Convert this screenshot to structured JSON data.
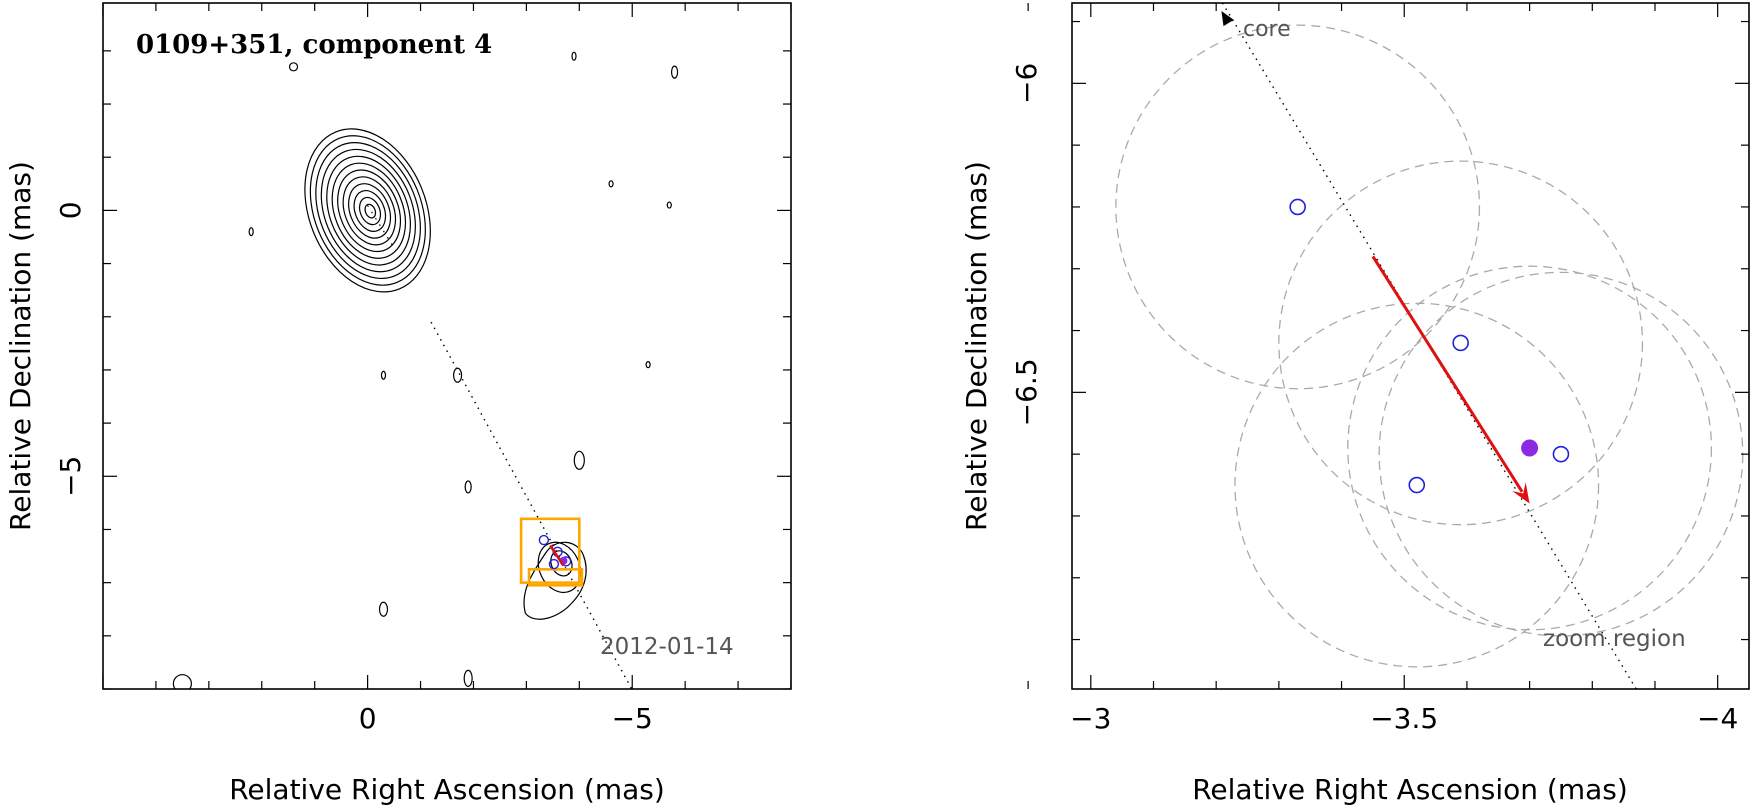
{
  "chart_data": [
    {
      "type": "contour",
      "title": "0109+351, component 4",
      "annotation": "2012-01-14",
      "xlabel": "Relative Right Ascension (mas)",
      "ylabel": "Relative Declination (mas)",
      "xlim": [
        5,
        -8
      ],
      "ylim": [
        -9,
        3.9
      ],
      "x_ticks": [
        0,
        -5
      ],
      "y_ticks": [
        0,
        -5
      ],
      "x_tick_labels": [
        "0",
        "−5"
      ],
      "y_tick_labels": [
        "0",
        "−5"
      ],
      "core": {
        "x": 0,
        "y": 0,
        "levels": 12,
        "major_axis_mas": 1.6,
        "minor_axis_mas": 1.05,
        "pa_deg": 22
      },
      "jet_component": {
        "x": -3.7,
        "y": -6.6
      },
      "components": [
        {
          "x": -3.33,
          "y": -6.2,
          "style": "open"
        },
        {
          "x": -3.59,
          "y": -6.42,
          "style": "open"
        },
        {
          "x": -3.52,
          "y": -6.65,
          "style": "open"
        },
        {
          "x": -3.75,
          "y": -6.6,
          "style": "open"
        },
        {
          "x": -3.7,
          "y": -6.59,
          "style": "filled"
        }
      ],
      "motion_arrow": {
        "from": [
          -3.45,
          -6.3
        ],
        "to": [
          -3.7,
          -6.68
        ]
      },
      "zoom_boxes": [
        {
          "x0": -2.9,
          "x1": -4.0,
          "y0": -5.8,
          "y1": -7.0
        },
        {
          "x0": -3.05,
          "x1": -4.05,
          "y0": -6.75,
          "y1": -7.05
        }
      ],
      "colors": {
        "contour": "#000000",
        "arrow": "#e01010",
        "zoom": "#ffa500",
        "open_marker": "#2020e0",
        "filled_marker": "#8a2be2"
      }
    },
    {
      "type": "scatter",
      "xlabel": "Relative Right Ascension (mas)",
      "ylabel": "Relative Declination (mas)",
      "xlim": [
        -2.97,
        -4.05
      ],
      "ylim": [
        -6.98,
        -5.87
      ],
      "x_ticks": [
        -3,
        -3.5,
        -4
      ],
      "y_ticks": [
        -6,
        -6.5
      ],
      "x_tick_labels": [
        "−3",
        "−3.5",
        "−4"
      ],
      "y_tick_labels": [
        "−6",
        "−6.5"
      ],
      "labels": {
        "core": "core",
        "zoom": "zoom region"
      },
      "points": [
        {
          "x": -3.33,
          "y": -6.2,
          "style": "open"
        },
        {
          "x": -3.59,
          "y": -6.42,
          "style": "open"
        },
        {
          "x": -3.52,
          "y": -6.65,
          "style": "open"
        },
        {
          "x": -3.75,
          "y": -6.6,
          "style": "open"
        },
        {
          "x": -3.7,
          "y": -6.59,
          "style": "filled"
        }
      ],
      "error_circles": [
        {
          "x": -3.33,
          "y": -6.2,
          "r": 0.29
        },
        {
          "x": -3.59,
          "y": -6.42,
          "r": 0.29
        },
        {
          "x": -3.52,
          "y": -6.65,
          "r": 0.29
        },
        {
          "x": -3.75,
          "y": -6.6,
          "r": 0.29
        },
        {
          "x": -3.7,
          "y": -6.59,
          "r": 0.29
        }
      ],
      "motion_arrow": {
        "from": [
          -3.45,
          -6.28
        ],
        "to": [
          -3.7,
          -6.68
        ]
      },
      "track_line": {
        "from": [
          -3.21,
          -5.87
        ],
        "to": [
          -3.87,
          -6.98
        ]
      },
      "colors": {
        "arrow": "#e01010",
        "circles": "#aaaaaa",
        "open_marker": "#2020e0",
        "filled_marker": "#8a2be2"
      }
    }
  ]
}
